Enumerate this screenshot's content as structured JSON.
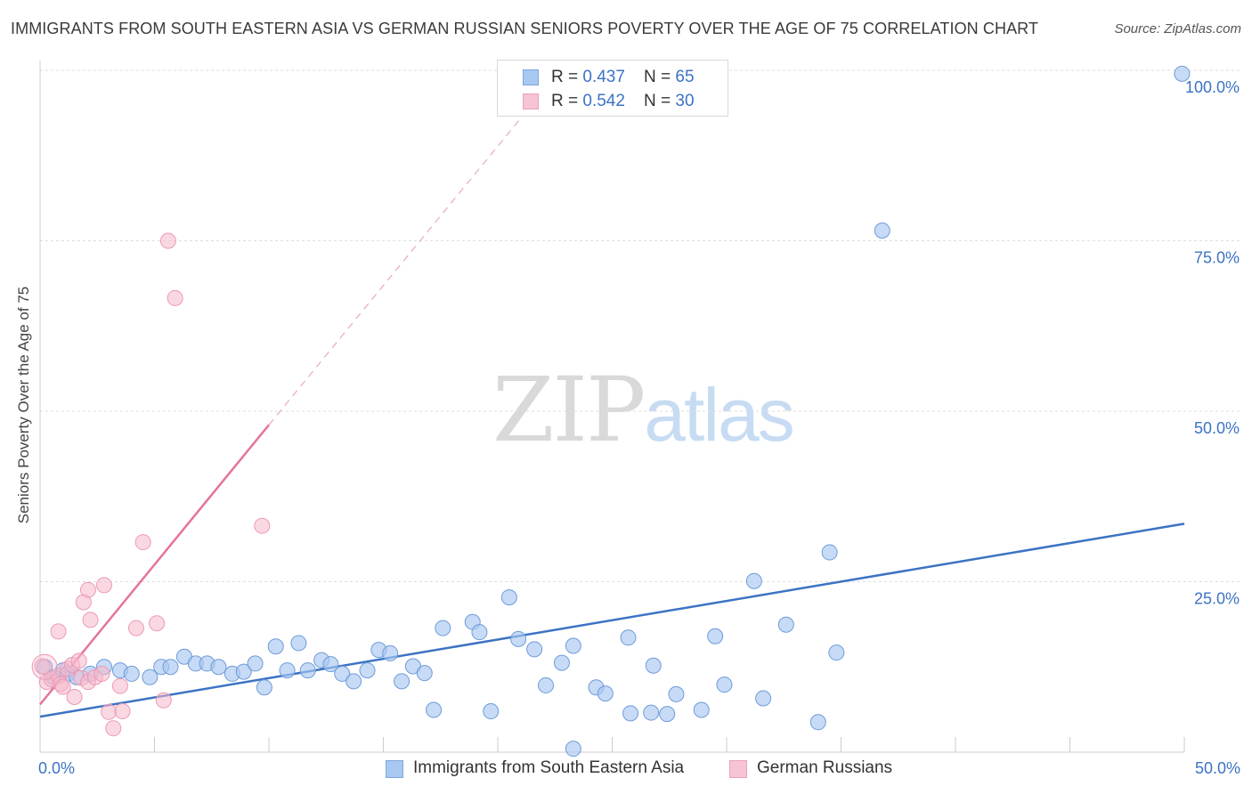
{
  "title": "IMMIGRANTS FROM SOUTH EASTERN ASIA VS GERMAN RUSSIAN SENIORS POVERTY OVER THE AGE OF 75 CORRELATION CHART",
  "source": "Source: ZipAtlas.com",
  "watermark": {
    "zip": "ZIP",
    "atlas": "atlas"
  },
  "colors": {
    "blue": "#3b73c4",
    "blue_fill": "#a9c8f1",
    "pink": "#e4749a",
    "pink_fill": "#f6b8cb",
    "grid": "#dddddd"
  },
  "legend_top": [
    {
      "r_label": "R = ",
      "r_value": "0.437",
      "n_label": "N = ",
      "n_value": "65"
    },
    {
      "r_label": "R = ",
      "r_value": "0.542",
      "n_label": "N = ",
      "n_value": "30"
    }
  ],
  "legend_bottom": [
    "Immigrants from South Eastern Asia",
    "German Russians"
  ],
  "chart_data": {
    "type": "scatter",
    "title": "IMMIGRANTS FROM SOUTH EASTERN ASIA VS GERMAN RUSSIAN SENIORS POVERTY OVER THE AGE OF 75 CORRELATION CHART",
    "xlabel": "",
    "ylabel": "Seniors Poverty Over the Age of 75",
    "xlim": [
      0,
      50
    ],
    "ylim": [
      0,
      100
    ],
    "x_tick_labels": [
      "0.0%",
      "50.0%"
    ],
    "y_tick_labels": [
      "25.0%",
      "50.0%",
      "75.0%",
      "100.0%"
    ],
    "y_tick_values": [
      25,
      50,
      75,
      100
    ],
    "grid": "horizontal dashed",
    "legend_position": "top-center",
    "series": [
      {
        "name": "Immigrants from South Eastern Asia",
        "color": "#3b73c4",
        "r": 0.437,
        "n": 65,
        "trend": {
          "x": [
            0,
            50
          ],
          "y": [
            5.2,
            33.5
          ],
          "style": "solid"
        },
        "points": [
          [
            0.2,
            12.5
          ],
          [
            0.6,
            11.0
          ],
          [
            1.0,
            12.0
          ],
          [
            1.2,
            11.5
          ],
          [
            1.6,
            11.0
          ],
          [
            2.2,
            11.5
          ],
          [
            2.8,
            12.5
          ],
          [
            3.5,
            12.0
          ],
          [
            4.0,
            11.5
          ],
          [
            4.8,
            11.0
          ],
          [
            5.3,
            12.5
          ],
          [
            5.7,
            12.5
          ],
          [
            6.3,
            14.0
          ],
          [
            6.8,
            13.0
          ],
          [
            7.3,
            13.0
          ],
          [
            7.8,
            12.5
          ],
          [
            8.4,
            11.5
          ],
          [
            8.9,
            11.8
          ],
          [
            9.4,
            13.0
          ],
          [
            9.8,
            9.5
          ],
          [
            10.3,
            15.5
          ],
          [
            10.8,
            12.0
          ],
          [
            11.3,
            16.0
          ],
          [
            11.7,
            12.0
          ],
          [
            12.3,
            13.5
          ],
          [
            12.7,
            12.9
          ],
          [
            13.2,
            11.5
          ],
          [
            13.7,
            10.4
          ],
          [
            14.3,
            12.0
          ],
          [
            14.8,
            15.0
          ],
          [
            15.3,
            14.5
          ],
          [
            15.8,
            10.4
          ],
          [
            16.3,
            12.6
          ],
          [
            16.8,
            11.6
          ],
          [
            17.2,
            6.2
          ],
          [
            17.6,
            18.2
          ],
          [
            18.9,
            19.1
          ],
          [
            19.2,
            17.6
          ],
          [
            19.7,
            6.0
          ],
          [
            20.5,
            22.7
          ],
          [
            20.9,
            16.6
          ],
          [
            21.6,
            15.1
          ],
          [
            22.1,
            9.8
          ],
          [
            22.8,
            13.1
          ],
          [
            23.3,
            15.6
          ],
          [
            23.3,
            0.5
          ],
          [
            24.3,
            9.5
          ],
          [
            24.7,
            8.6
          ],
          [
            25.7,
            16.8
          ],
          [
            25.8,
            5.7
          ],
          [
            26.7,
            5.8
          ],
          [
            26.8,
            12.7
          ],
          [
            27.4,
            5.6
          ],
          [
            27.8,
            8.5
          ],
          [
            28.9,
            6.2
          ],
          [
            29.5,
            17.0
          ],
          [
            29.9,
            9.9
          ],
          [
            31.2,
            25.1
          ],
          [
            31.6,
            7.9
          ],
          [
            32.6,
            18.7
          ],
          [
            34.0,
            4.4
          ],
          [
            34.5,
            29.3
          ],
          [
            34.8,
            14.6
          ],
          [
            36.8,
            76.5
          ],
          [
            49.9,
            99.5
          ]
        ]
      },
      {
        "name": "German Russians",
        "color": "#e4749a",
        "r": 0.542,
        "n": 30,
        "trend": {
          "x": [
            0,
            10.0
          ],
          "y": [
            7.0,
            48.0
          ],
          "style": "solid",
          "extended": {
            "x": [
              10.0,
              21.5
            ],
            "y": [
              48.0,
              95.0
            ],
            "style": "dashed"
          }
        },
        "points": [
          [
            0.1,
            12.6
          ],
          [
            0.3,
            10.3
          ],
          [
            0.5,
            10.7
          ],
          [
            0.8,
            11.2
          ],
          [
            0.8,
            17.7
          ],
          [
            0.9,
            10.0
          ],
          [
            1.0,
            9.6
          ],
          [
            1.2,
            12.2
          ],
          [
            1.4,
            12.8
          ],
          [
            1.5,
            8.1
          ],
          [
            1.7,
            13.4
          ],
          [
            1.8,
            10.9
          ],
          [
            1.9,
            22.0
          ],
          [
            2.1,
            10.3
          ],
          [
            2.1,
            23.8
          ],
          [
            2.2,
            19.4
          ],
          [
            2.4,
            11.0
          ],
          [
            2.7,
            11.5
          ],
          [
            2.8,
            24.5
          ],
          [
            3.0,
            5.9
          ],
          [
            3.2,
            3.5
          ],
          [
            3.5,
            9.7
          ],
          [
            3.6,
            6.0
          ],
          [
            4.2,
            18.2
          ],
          [
            4.5,
            30.8
          ],
          [
            5.1,
            18.9
          ],
          [
            5.4,
            7.6
          ],
          [
            5.6,
            75.0
          ],
          [
            5.9,
            66.6
          ],
          [
            9.7,
            33.2
          ]
        ]
      }
    ]
  }
}
